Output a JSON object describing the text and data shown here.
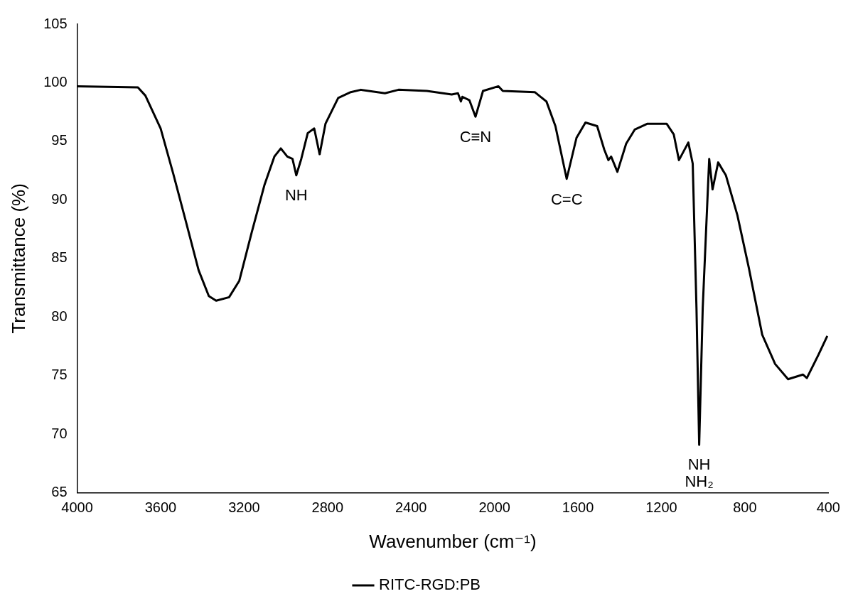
{
  "chart_data": {
    "type": "line",
    "xlabel": "Wavenumber (cm⁻¹)",
    "ylabel": "Transmittance (%)",
    "xlim": [
      4000,
      400
    ],
    "xticks": [
      4000,
      3600,
      3200,
      2800,
      2400,
      2000,
      1600,
      1200,
      800,
      400
    ],
    "ylim": [
      65,
      105
    ],
    "yticks": [
      65,
      70,
      75,
      80,
      85,
      90,
      95,
      100,
      105
    ],
    "grid": false,
    "legend": "bottom",
    "marker": "none",
    "line_style": "solid",
    "annotations": [
      {
        "text": "NH",
        "x": 2950,
        "y": 92.1
      },
      {
        "text": "C≡N",
        "x": 2091,
        "y": 97.06
      },
      {
        "text": "C=C",
        "x": 1654,
        "y": 91.75
      },
      {
        "text": "NH\nNH₂",
        "x": 1019,
        "y": 69.1
      }
    ],
    "series": [
      {
        "name": "RITC-RGD:PB",
        "color": "#000000",
        "x": [
          4000,
          3709,
          3673,
          3600,
          3539,
          3478,
          3418,
          3369,
          3334,
          3272,
          3223,
          3164,
          3102,
          3055,
          3024,
          2993,
          2968,
          2950,
          2926,
          2895,
          2864,
          2838,
          2810,
          2749,
          2689,
          2640,
          2525,
          2460,
          2324,
          2205,
          2175,
          2161,
          2154,
          2120,
          2091,
          2055,
          1981,
          1960,
          1807,
          1751,
          1708,
          1654,
          1607,
          1564,
          1508,
          1474,
          1454,
          1441,
          1411,
          1369,
          1328,
          1267,
          1175,
          1141,
          1116,
          1071,
          1050,
          1032,
          1019,
          1002,
          971,
          955,
          928,
          891,
          836,
          781,
          717,
          655,
          593,
          522,
          503,
          447,
          405
        ],
        "values": [
          99.7,
          99.6,
          98.9,
          96.1,
          92.2,
          88.1,
          84.0,
          81.8,
          81.4,
          81.7,
          83.1,
          87.2,
          91.3,
          93.7,
          94.4,
          93.7,
          93.5,
          92.1,
          93.5,
          95.7,
          96.1,
          93.9,
          96.5,
          98.7,
          99.2,
          99.4,
          99.1,
          99.4,
          99.3,
          99.0,
          99.1,
          98.4,
          98.8,
          98.5,
          97.1,
          99.3,
          99.7,
          99.3,
          99.2,
          98.4,
          96.3,
          91.8,
          95.3,
          96.6,
          96.3,
          94.3,
          93.4,
          93.7,
          92.4,
          94.8,
          96.0,
          96.5,
          96.5,
          95.6,
          93.4,
          94.9,
          93.1,
          80.8,
          69.1,
          80.8,
          93.5,
          90.9,
          93.2,
          92.1,
          88.7,
          84.2,
          78.5,
          76.0,
          74.7,
          75.1,
          74.8,
          76.8,
          78.4
        ]
      }
    ]
  }
}
